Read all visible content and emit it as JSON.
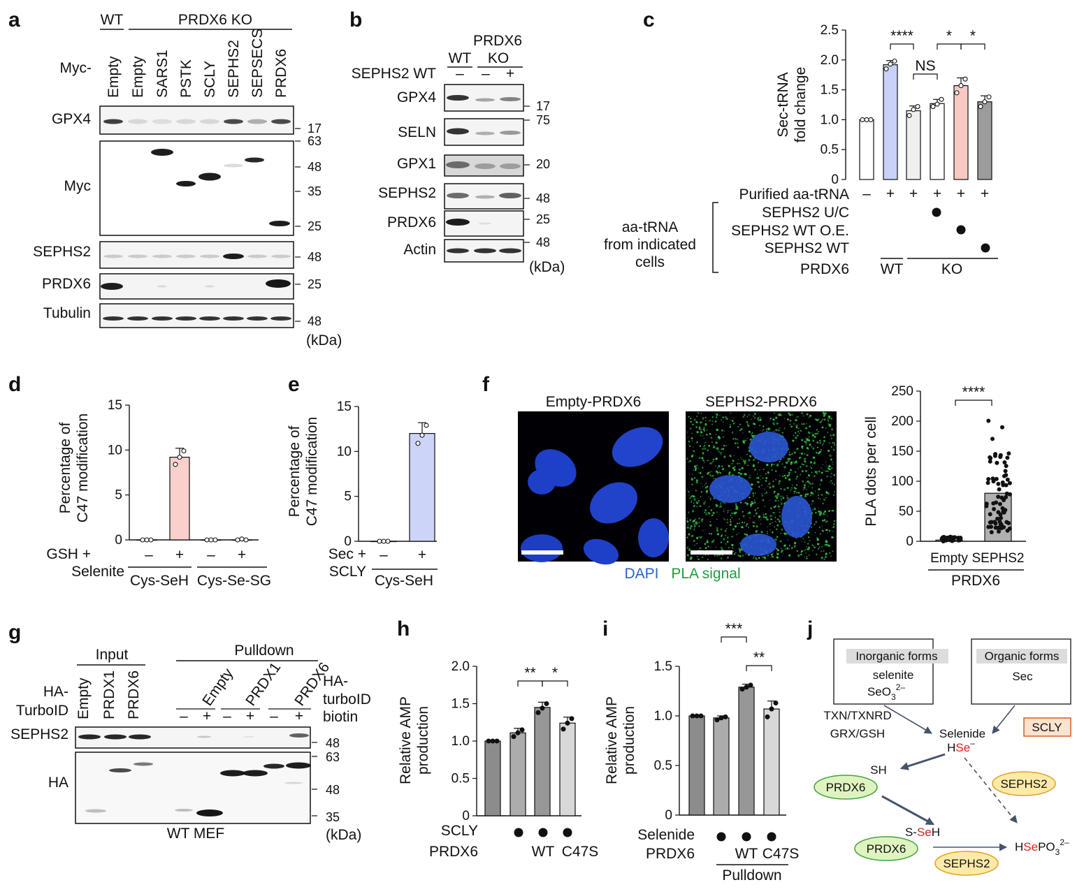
{
  "panels": {
    "a": {
      "letter": "a",
      "wt": "WT",
      "ko": "PRDX6 KO",
      "myc_prefix": "Myc-",
      "lanes": [
        "Empty",
        "Empty",
        "SARS1",
        "PSTK",
        "SCLY",
        "SEPHS2",
        "SEPSECS",
        "PRDX6"
      ],
      "blots": [
        "GPX4",
        "Myc",
        "SEPHS2",
        "PRDX6",
        "Tubulin"
      ],
      "mw": [
        "17",
        "63",
        "48",
        "35",
        "25",
        "48",
        "25",
        "48"
      ],
      "kda": "(kDa)"
    },
    "b": {
      "letter": "b",
      "title": "PRDX6",
      "wt": "WT",
      "ko": "KO",
      "sephs2_wt": "SEPHS2 WT",
      "signs": [
        "–",
        "–",
        "+"
      ],
      "blots": [
        "GPX4",
        "SELN",
        "GPX1",
        "SEPHS2",
        "PRDX6",
        "Actin"
      ],
      "mw": [
        "17",
        "75",
        "20",
        "48",
        "25",
        "48"
      ],
      "kda": "(kDa)"
    },
    "c": {
      "letter": "c",
      "ylabel1": "Sec-tRNA",
      "ylabel2": "fold change",
      "row_purified": "Purified aa-tRNA",
      "row_uc": "SEPHS2 U/C",
      "row_oe": "SEPHS2 WT O.E.",
      "row_wt": "SEPHS2 WT",
      "row_prdx6": "PRDX6",
      "group_label": [
        "aa-tRNA",
        "from indicated",
        "cells"
      ],
      "signs": [
        "–",
        "+",
        "+",
        "+",
        "+",
        "+"
      ],
      "wt": "WT",
      "ko": "KO",
      "sig": [
        "****",
        "NS",
        "*",
        "*"
      ]
    },
    "d": {
      "letter": "d",
      "ylabel1": "Percentage of",
      "ylabel2": "C47 modification",
      "row1": "GSH +",
      "row2": "Selenite",
      "signs": [
        "–",
        "+",
        "–",
        "+"
      ],
      "group1": "Cys-SeH",
      "group2": "Cys-Se-SG"
    },
    "e": {
      "letter": "e",
      "ylabel1": "Percentage of",
      "ylabel2": "C47 modification",
      "row1": "Sec +",
      "row2": "SCLY",
      "signs": [
        "–",
        "+"
      ],
      "group1": "Cys-SeH"
    },
    "f": {
      "letter": "f",
      "img1": "Empty-PRDX6",
      "img2": "SEPHS2-PRDX6",
      "dapi": "DAPI",
      "pla": "PLA signal",
      "ylabel": "PLA dots per cell",
      "cat1": "Empty",
      "cat2": "SEPHS2",
      "group": "PRDX6",
      "sig": "****"
    },
    "g": {
      "letter": "g",
      "input": "Input",
      "pulldown": "Pulldown",
      "ha": "HA-",
      "turboid": "TurboID",
      "ha2": "HA-",
      "turboid2": "turboID",
      "biotin": "biotin",
      "lanes": [
        "Empty",
        "PRDX1",
        "PRDX6",
        "Empty",
        "PRDX1",
        "PRDX6"
      ],
      "signs": [
        "–",
        "+",
        "–",
        "+",
        "–",
        "+"
      ],
      "blots": [
        "SEPHS2",
        "HA"
      ],
      "mw": [
        "48",
        "63",
        "48",
        "35"
      ],
      "kda": "(kDa)",
      "footer": "WT MEF"
    },
    "h": {
      "letter": "h",
      "ylabel1": "Relative AMP",
      "ylabel2": "production",
      "row1": "SCLY",
      "row2": "PRDX6",
      "wt": "WT",
      "c47s": "C47S",
      "sig": [
        "**",
        "*"
      ]
    },
    "i": {
      "letter": "i",
      "ylabel1": "Relative AMP",
      "ylabel2": "production",
      "row1": "Selenide",
      "row2": "PRDX6",
      "wt": "WT",
      "c47s": "C47S",
      "pulldown": "Pulldown",
      "sig": [
        "***",
        "**"
      ]
    },
    "j": {
      "letter": "j",
      "inorganic": "Inorganic forms",
      "selenite": "selenite",
      "seo3": "SeO",
      "seo3_sub": "3",
      "seo3_sup": "2–",
      "organic": "Organic forms",
      "sec": "Sec",
      "txn": "TXN/TXNRD",
      "grx": "GRX/GSH",
      "selenide": "Selenide",
      "hse_h": "H",
      "hse_se": "Se",
      "hse_minus": "–",
      "scly": "SCLY",
      "sh": "SH",
      "prdx6": "PRDX6",
      "sephs2": "SEPHS2",
      "sseh_s": "S-",
      "sseh_se": "Se",
      "sseh_h": "H",
      "hsepo_h": "H",
      "hsepo_se": "Se",
      "hsepo_po": "PO",
      "hsepo_sub": "3",
      "hsepo_sup": "2–"
    }
  },
  "chart_data": [
    {
      "type": "bar",
      "panel": "c",
      "categories": [
        "1",
        "2",
        "3",
        "4",
        "5",
        "6"
      ],
      "values": [
        1.0,
        1.92,
        1.15,
        1.27,
        1.57,
        1.3
      ],
      "errors": [
        0.0,
        0.07,
        0.08,
        0.07,
        0.13,
        0.1
      ],
      "points": [
        [
          1.0,
          1.0,
          1.0
        ],
        [
          1.85,
          1.93,
          1.98
        ],
        [
          1.07,
          1.17,
          1.22
        ],
        [
          1.22,
          1.26,
          1.34
        ],
        [
          1.45,
          1.57,
          1.68
        ],
        [
          1.22,
          1.3,
          1.38
        ]
      ],
      "colors": [
        "#ffffff",
        "#c8d2f8",
        "#efefef",
        "#ffffff",
        "#f8c8c3",
        "#9c9c9c"
      ],
      "ylim": [
        0,
        2.5
      ],
      "yticks": [
        "0",
        "0.5",
        "1.0",
        "1.5",
        "2.0",
        "2.5"
      ],
      "ylabel": "Sec-tRNA fold change"
    },
    {
      "type": "bar",
      "panel": "d",
      "categories": [
        "1",
        "2",
        "3",
        "4"
      ],
      "values": [
        0.0,
        9.2,
        0.0,
        0.0
      ],
      "errors": [
        0.0,
        1.0,
        0.0,
        0.0
      ],
      "points": [
        [
          0,
          0,
          0
        ],
        [
          8.4,
          9.2,
          9.9
        ],
        [
          0,
          0,
          0
        ],
        [
          0,
          0.1,
          0
        ]
      ],
      "colors": [
        "#ffffff",
        "#f9d0cb",
        "#ffffff",
        "#ffffff"
      ],
      "ylim": [
        0,
        15
      ],
      "yticks": [
        "0",
        "5",
        "10",
        "15"
      ],
      "ylabel": "Percentage of C47 modification"
    },
    {
      "type": "bar",
      "panel": "e",
      "categories": [
        "1",
        "2"
      ],
      "values": [
        0.0,
        12.0
      ],
      "errors": [
        0.0,
        1.2
      ],
      "points": [
        [
          0,
          0,
          0
        ],
        [
          10.9,
          11.8,
          12.9
        ]
      ],
      "colors": [
        "#ffffff",
        "#ccd4f8"
      ],
      "ylim": [
        0,
        15
      ],
      "yticks": [
        "0",
        "5",
        "10",
        "15"
      ],
      "ylabel": "Percentage of C47 modification"
    },
    {
      "type": "bar",
      "panel": "f",
      "categories": [
        "Empty",
        "SEPHS2"
      ],
      "values": [
        2,
        80
      ],
      "colors": [
        "#b0b0b0",
        "#b0b0b0"
      ],
      "ylim": [
        0,
        250
      ],
      "yticks": [
        "0",
        "50",
        "100",
        "150",
        "200",
        "250"
      ],
      "ylabel": "PLA dots per cell"
    },
    {
      "type": "bar",
      "panel": "h",
      "categories": [
        "1",
        "2",
        "3",
        "4"
      ],
      "values": [
        1.0,
        1.11,
        1.45,
        1.24
      ],
      "errors": [
        0.0,
        0.06,
        0.07,
        0.08
      ],
      "points": [
        [
          1.0,
          1.0,
          1.0
        ],
        [
          1.06,
          1.11,
          1.15
        ],
        [
          1.38,
          1.44,
          1.5
        ],
        [
          1.16,
          1.24,
          1.3
        ]
      ],
      "colors": [
        "#8c8c8c",
        "#acacac",
        "#979797",
        "#d8d8d8"
      ],
      "ylim": [
        0,
        2.0
      ],
      "yticks": [
        "0",
        "0.5",
        "1.0",
        "1.5",
        "2.0"
      ],
      "ylabel": "Relative AMP production"
    },
    {
      "type": "bar",
      "panel": "i",
      "categories": [
        "1",
        "2",
        "3",
        "4"
      ],
      "values": [
        1.0,
        0.98,
        1.29,
        1.07
      ],
      "errors": [
        0.0,
        0.02,
        0.03,
        0.08
      ],
      "points": [
        [
          1.0,
          1.0,
          1.0
        ],
        [
          0.96,
          0.98,
          0.99
        ],
        [
          1.27,
          1.29,
          1.31
        ],
        [
          0.99,
          1.07,
          1.13
        ]
      ],
      "colors": [
        "#8c8c8c",
        "#acacac",
        "#979797",
        "#d8d8d8"
      ],
      "ylim": [
        0,
        1.5
      ],
      "yticks": [
        "0",
        "0.5",
        "1.0",
        "1.5"
      ],
      "ylabel": "Relative AMP production"
    }
  ]
}
